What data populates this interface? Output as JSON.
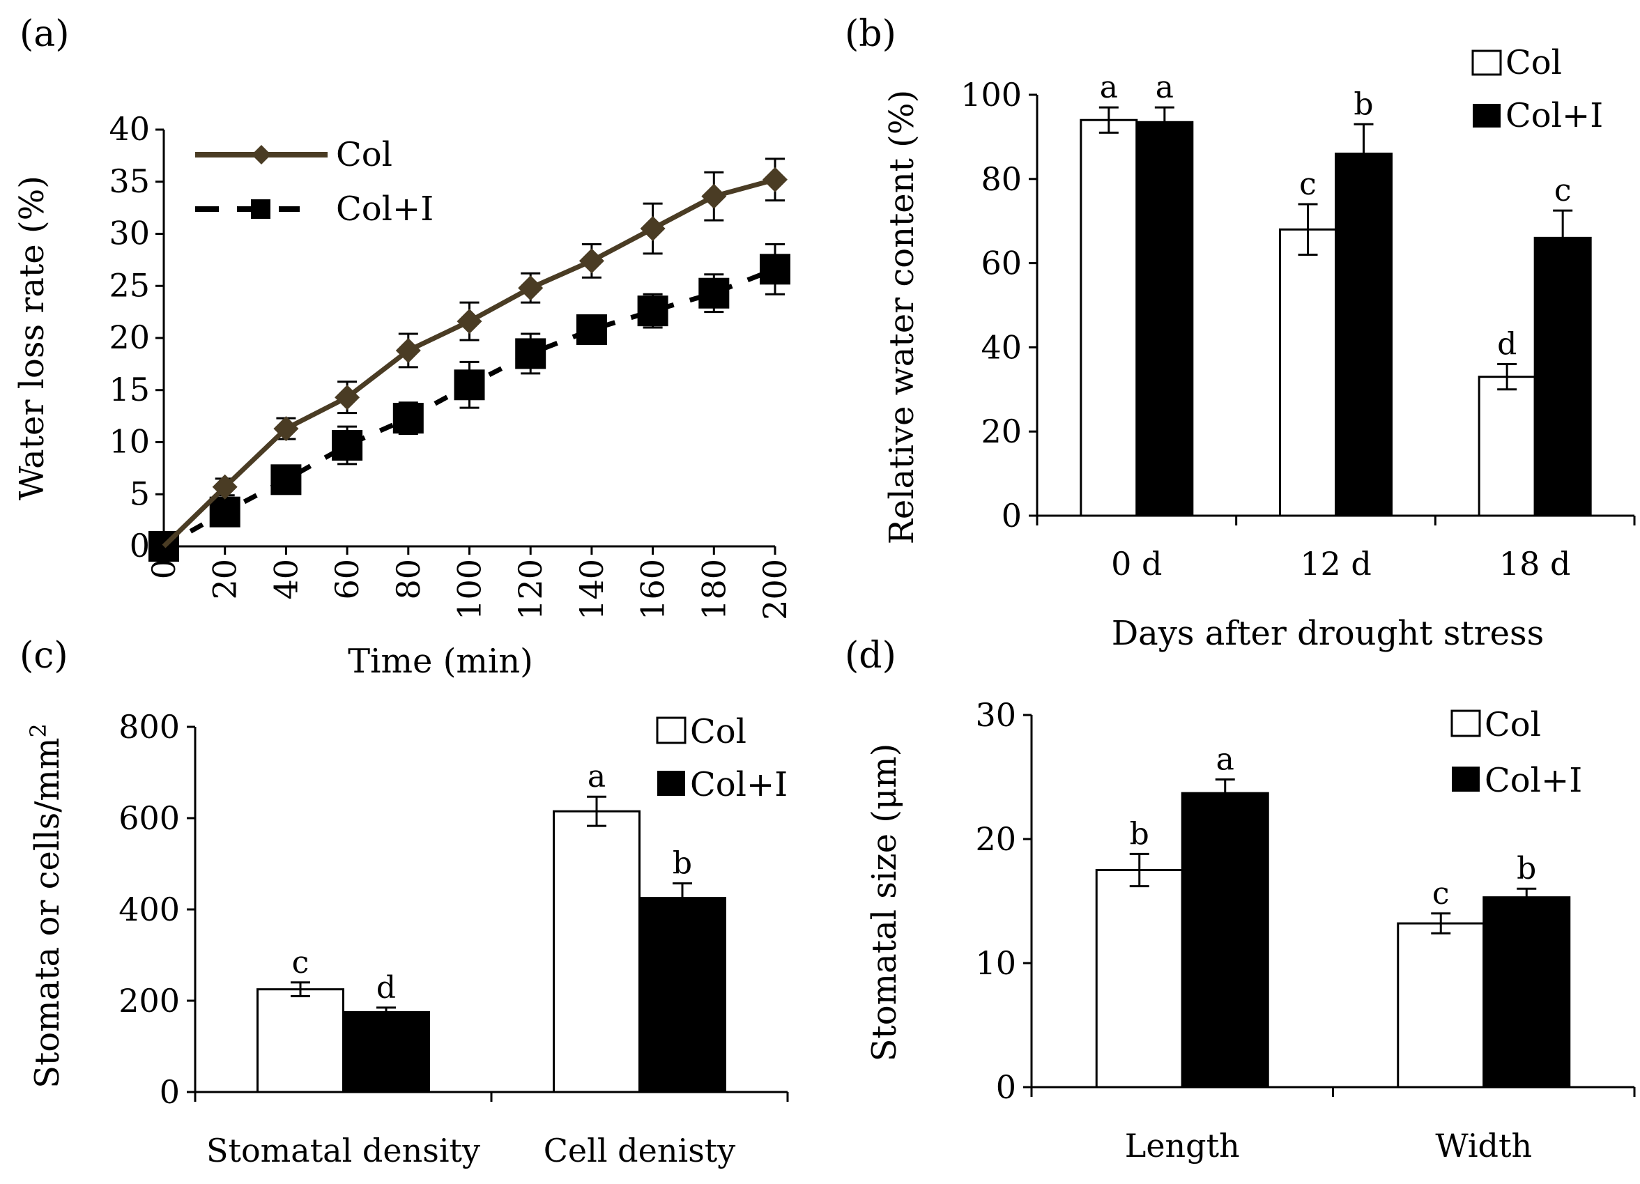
{
  "chart_data": [
    {
      "panel": "(a)",
      "type": "line",
      "xlabel": "Time (min)",
      "ylabel": "Water loss rate (%)",
      "x": [
        0,
        20,
        40,
        60,
        80,
        100,
        120,
        140,
        160,
        180,
        200
      ],
      "xlim": [
        0,
        200
      ],
      "ylim": [
        0,
        40
      ],
      "xticks": [
        "0",
        "20",
        "40",
        "60",
        "80",
        "100",
        "120",
        "140",
        "160",
        "180",
        "200"
      ],
      "yticks": [
        "0",
        "5",
        "10",
        "15",
        "20",
        "25",
        "30",
        "35",
        "40"
      ],
      "legend_position": "top-left",
      "series": [
        {
          "name": "Col",
          "values": [
            0,
            5.7,
            11.3,
            14.3,
            18.8,
            21.6,
            24.8,
            27.4,
            30.5,
            33.6,
            35.2
          ],
          "errors": [
            0,
            0.8,
            1.0,
            1.5,
            1.6,
            1.8,
            1.4,
            1.6,
            2.4,
            2.3,
            2.0
          ]
        },
        {
          "name": "Col+I",
          "values": [
            0,
            3.3,
            6.4,
            9.7,
            12.3,
            15.5,
            18.5,
            20.8,
            22.6,
            24.3,
            26.6
          ],
          "errors": [
            0,
            0.8,
            1.0,
            1.8,
            1.5,
            2.2,
            1.9,
            1.2,
            1.6,
            1.8,
            2.4
          ]
        }
      ]
    },
    {
      "panel": "(b)",
      "type": "bar",
      "xlabel": "Days after drought  stress",
      "ylabel": "Relative water content (%)",
      "categories": [
        "0 d",
        "12 d",
        "18 d"
      ],
      "ylim": [
        0,
        100
      ],
      "yticks": [
        "0",
        "20",
        "40",
        "60",
        "80",
        "100"
      ],
      "legend_position": "top-right",
      "series": [
        {
          "name": "Col",
          "values": [
            94,
            68,
            33
          ],
          "errors": [
            3,
            6,
            3
          ],
          "letters": [
            "a",
            "c",
            "d"
          ]
        },
        {
          "name": "Col+I",
          "values": [
            93.5,
            86,
            66
          ],
          "errors": [
            3.5,
            7,
            6.5
          ],
          "letters": [
            "a",
            "b",
            "c"
          ]
        }
      ]
    },
    {
      "panel": "(c)",
      "type": "bar",
      "xlabel": "",
      "ylabel": "Stomata or cells/mm2",
      "categories": [
        "Stomatal density",
        "Cell denisty"
      ],
      "ylim": [
        0,
        800
      ],
      "yticks": [
        "0",
        "200",
        "400",
        "600",
        "800"
      ],
      "legend_position": "top-right",
      "series": [
        {
          "name": "Col",
          "values": [
            225,
            615
          ],
          "errors": [
            15,
            32
          ],
          "letters": [
            "c",
            "a"
          ]
        },
        {
          "name": "Col+I",
          "values": [
            175,
            425
          ],
          "errors": [
            10,
            32
          ],
          "letters": [
            "d",
            "b"
          ]
        }
      ]
    },
    {
      "panel": "(d)",
      "type": "bar",
      "xlabel": "",
      "ylabel": "Stomatal size (μm)",
      "categories": [
        "Length",
        "Width"
      ],
      "ylim": [
        0,
        30
      ],
      "yticks": [
        "0",
        "10",
        "20",
        "30"
      ],
      "legend_position": "top-right",
      "series": [
        {
          "name": "Col",
          "values": [
            17.5,
            13.2
          ],
          "errors": [
            1.3,
            0.8
          ],
          "letters": [
            "b",
            "c"
          ]
        },
        {
          "name": "Col+I",
          "values": [
            23.7,
            15.3
          ],
          "errors": [
            1.1,
            0.7
          ],
          "letters": [
            "a",
            "b"
          ]
        }
      ]
    }
  ],
  "colors": {
    "col_a_line": "#4a3c24",
    "col_a_marker": "#4a3c24",
    "black": "#000000",
    "white": "#ffffff"
  }
}
